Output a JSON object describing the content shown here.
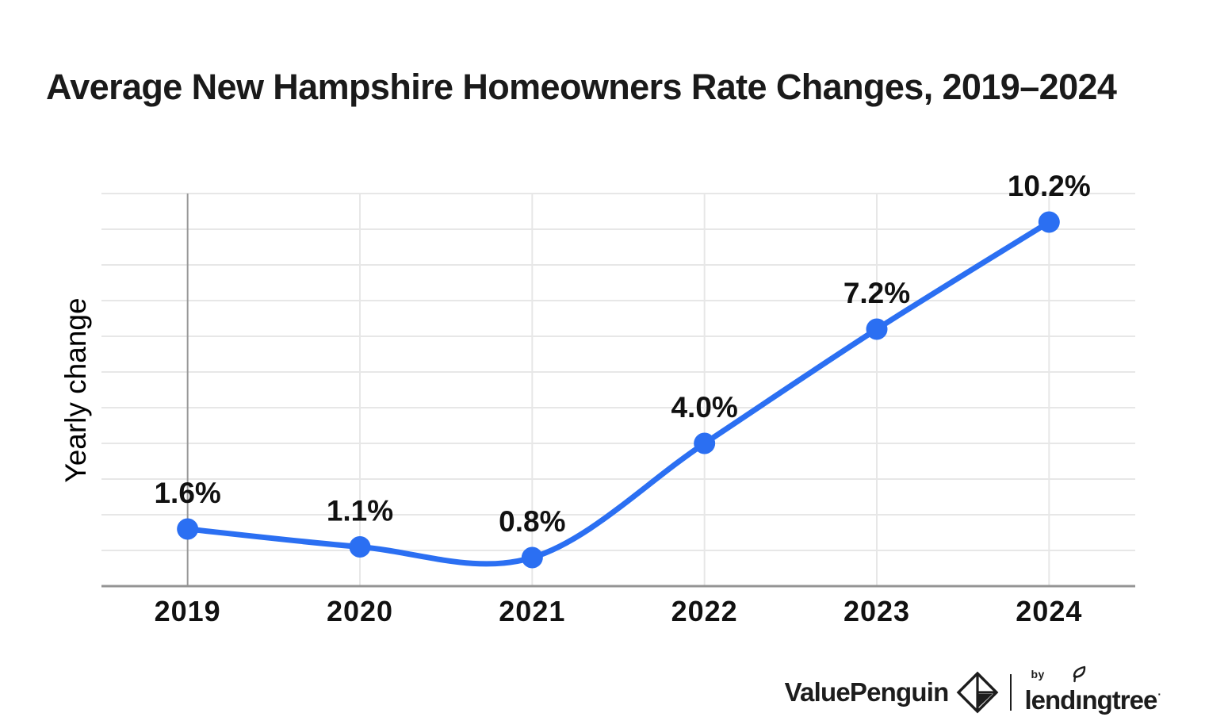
{
  "title": "Average New Hampshire Homeowners Rate Changes, 2019–2024",
  "chart_data": {
    "type": "line",
    "categories": [
      "2019",
      "2020",
      "2021",
      "2022",
      "2023",
      "2024"
    ],
    "values": [
      1.6,
      1.1,
      0.8,
      4.0,
      7.2,
      10.2
    ],
    "point_labels": [
      "1.6%",
      "1.1%",
      "0.8%",
      "4.0%",
      "7.2%",
      "10.2%"
    ],
    "title": "Average New Hampshire Homeowners Rate Changes, 2019–2024",
    "xlabel": "",
    "ylabel": "Yearly change",
    "ylim": [
      0,
      11
    ],
    "grid": true,
    "legend": "none",
    "line_color": "#2B6FF2",
    "gridline_color": "#e7e7e7",
    "axis_color": "#949494",
    "baseline_color": "#999999",
    "label_color": "#111111"
  },
  "footer": {
    "brand_left": "ValuePenguin",
    "brand_by": "by",
    "brand_right": "lendingtree",
    "brand_right_parts": {
      "pre": "lend",
      "i": "ı",
      "post": "ngtree"
    },
    "trademark": "·"
  }
}
